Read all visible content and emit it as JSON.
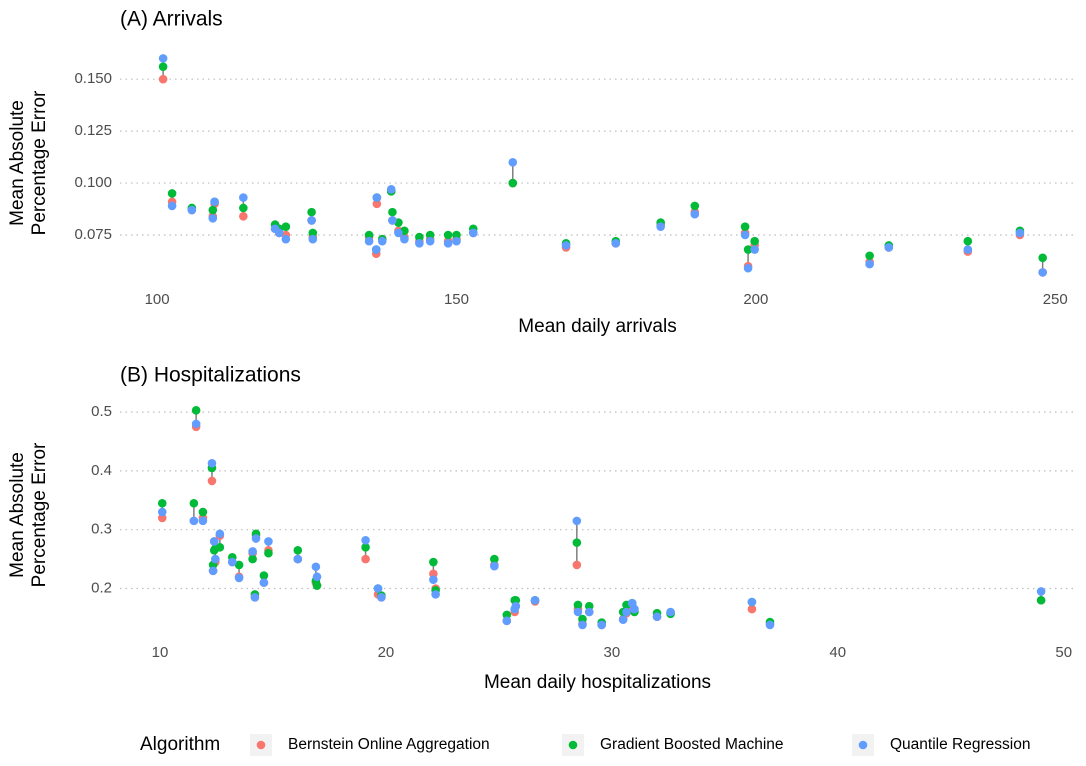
{
  "chart_data": [
    {
      "type": "scatter",
      "title": "(A) Arrivals",
      "xlabel": "Mean daily arrivals",
      "ylabel": [
        "Mean Absolute",
        "Percentage Error"
      ],
      "x": [
        101.0,
        102.5,
        105.8,
        109.3,
        109.6,
        114.4,
        119.7,
        120.4,
        121.5,
        125.8,
        126.0,
        135.4,
        136.6,
        136.7,
        137.6,
        139.1,
        139.3,
        140.3,
        141.3,
        143.8,
        145.6,
        148.6,
        150.0,
        152.8,
        159.4,
        168.3,
        176.6,
        184.1,
        189.8,
        198.2,
        198.7,
        199.8,
        219.0,
        222.2,
        235.4,
        244.1,
        247.9
      ],
      "series": [
        {
          "name": "Bernstein Online Aggregation",
          "color": "#F8766D",
          "values": [
            0.15,
            0.091,
            0.087,
            0.084,
            0.09,
            0.084,
            0.078,
            0.076,
            0.075,
            0.082,
            0.074,
            0.074,
            0.066,
            0.09,
            0.073,
            0.096,
            0.082,
            0.077,
            0.074,
            0.072,
            0.073,
            0.072,
            0.073,
            0.076,
            0.1,
            0.069,
            0.071,
            0.08,
            0.086,
            0.076,
            0.06,
            0.07,
            0.062,
            0.069,
            0.067,
            0.075,
            0.057
          ]
        },
        {
          "name": "Gradient Boosted Machine",
          "color": "#00BA38",
          "values": [
            0.156,
            0.095,
            0.088,
            0.087,
            0.091,
            0.088,
            0.08,
            0.078,
            0.079,
            0.086,
            0.076,
            0.075,
            0.068,
            0.093,
            0.073,
            0.096,
            0.086,
            0.081,
            0.077,
            0.074,
            0.075,
            0.075,
            0.075,
            0.078,
            0.1,
            0.071,
            0.072,
            0.081,
            0.089,
            0.079,
            0.068,
            0.072,
            0.065,
            0.07,
            0.072,
            0.077,
            0.064
          ]
        },
        {
          "name": "Quantile Regression",
          "color": "#619CFF",
          "values": [
            0.16,
            0.089,
            0.087,
            0.083,
            0.091,
            0.093,
            0.078,
            0.076,
            0.073,
            0.082,
            0.073,
            0.072,
            0.068,
            0.093,
            0.072,
            0.097,
            0.082,
            0.076,
            0.073,
            0.071,
            0.072,
            0.071,
            0.072,
            0.076,
            0.11,
            0.07,
            0.071,
            0.079,
            0.085,
            0.075,
            0.059,
            0.068,
            0.061,
            0.069,
            0.068,
            0.076,
            0.057
          ]
        }
      ],
      "xlim": [
        93.8,
        253.3
      ],
      "xticks": [
        100,
        150,
        200,
        250
      ],
      "ylim": [
        0.0543,
        0.165
      ],
      "yticks": [
        0.075,
        {
          "value": 0.1,
          "label": "0.100"
        },
        0.125,
        {
          "value": 0.15,
          "label": "0.150"
        }
      ],
      "grid": true
    },
    {
      "type": "scatter",
      "title": "(B) Hospitalizations",
      "xlabel": "Mean daily hospitalizations",
      "ylabel": [
        "Mean Absolute",
        "Percentage Error"
      ],
      "x": [
        10.1,
        11.5,
        11.6,
        11.9,
        12.3,
        12.35,
        12.4,
        12.45,
        12.65,
        13.2,
        13.5,
        14.1,
        14.2,
        14.25,
        14.6,
        14.8,
        16.1,
        16.9,
        16.95,
        19.1,
        19.65,
        19.8,
        22.1,
        22.2,
        24.8,
        25.35,
        25.7,
        25.75,
        26.6,
        28.45,
        28.5,
        28.7,
        29.0,
        29.55,
        30.5,
        30.65,
        30.9,
        31.0,
        32.0,
        32.6,
        36.2,
        37.0,
        49.0
      ],
      "series": [
        {
          "name": "Bernstein Online Aggregation",
          "color": "#F8766D",
          "values": [
            0.32,
            0.315,
            0.475,
            0.32,
            0.383,
            0.23,
            0.28,
            0.245,
            0.29,
            0.245,
            0.22,
            0.26,
            0.185,
            0.29,
            0.21,
            0.265,
            0.25,
            0.21,
            0.205,
            0.25,
            0.19,
            0.185,
            0.225,
            0.2,
            0.24,
            0.145,
            0.16,
            0.17,
            0.178,
            0.24,
            0.165,
            0.14,
            0.16,
            0.138,
            0.148,
            0.158,
            0.17,
            0.163,
            0.152,
            0.158,
            0.165,
            0.14,
            0.18
          ]
        },
        {
          "name": "Gradient Boosted Machine",
          "color": "#00BA38",
          "values": [
            0.345,
            0.345,
            0.503,
            0.33,
            0.405,
            0.24,
            0.265,
            0.268,
            0.27,
            0.253,
            0.24,
            0.25,
            0.19,
            0.293,
            0.222,
            0.26,
            0.265,
            0.213,
            0.205,
            0.27,
            0.2,
            0.188,
            0.245,
            0.197,
            0.25,
            0.155,
            0.18,
            0.18,
            0.18,
            0.278,
            0.172,
            0.148,
            0.17,
            0.142,
            0.16,
            0.172,
            0.175,
            0.16,
            0.158,
            0.157,
            0.177,
            0.143,
            0.18
          ]
        },
        {
          "name": "Quantile Regression",
          "color": "#619CFF",
          "values": [
            0.33,
            0.315,
            0.48,
            0.315,
            0.413,
            0.23,
            0.28,
            0.25,
            0.293,
            0.245,
            0.218,
            0.263,
            0.185,
            0.285,
            0.21,
            0.28,
            0.25,
            0.237,
            0.22,
            0.282,
            0.2,
            0.185,
            0.215,
            0.19,
            0.238,
            0.145,
            0.165,
            0.17,
            0.18,
            0.315,
            0.16,
            0.138,
            0.16,
            0.138,
            0.147,
            0.16,
            0.175,
            0.165,
            0.152,
            0.16,
            0.177,
            0.138,
            0.195
          ]
        }
      ],
      "xlim": [
        8.23,
        50.5
      ],
      "xticks": [
        10,
        20,
        30,
        40,
        50
      ],
      "ylim": [
        0.126,
        0.524
      ],
      "yticks": [
        0.2,
        0.3,
        0.4,
        0.5
      ],
      "grid": true
    }
  ],
  "legend": {
    "title": "Algorithm",
    "position": "bottom"
  }
}
